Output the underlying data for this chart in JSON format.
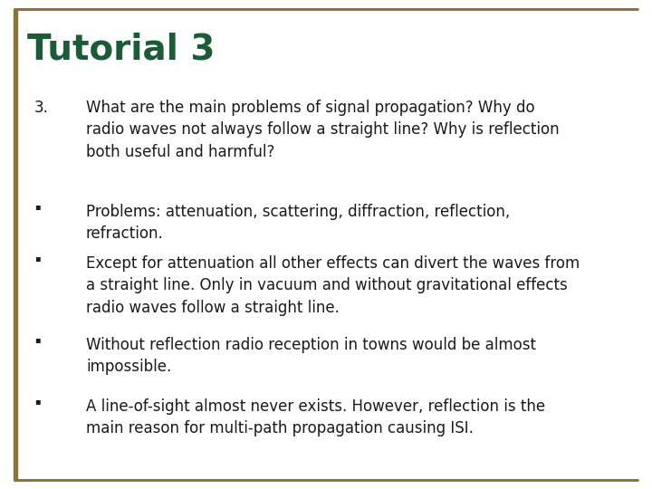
{
  "title": "Tutorial 3",
  "title_color": "#1a5c38",
  "title_fontsize": 28,
  "background_color": "#ffffff",
  "border_color": "#8B7536",
  "question_number": "3.",
  "question_text": "What are the main problems of signal propagation? Why do\nradio waves not always follow a straight line? Why is reflection\nboth useful and harmful?",
  "question_fontsize": 12,
  "text_color": "#1a1a1a",
  "bullet_fontsize": 12,
  "bullets": [
    "Problems: attenuation, scattering, diffraction, reflection,\nrefraction.",
    "Except for attenuation all other effects can divert the waves from\na straight line. Only in vacuum and without gravitational effects\nradio waves follow a straight line.",
    "Without reflection radio reception in towns would be almost\nimpossible.",
    "A line-of-sight almost never exists. However, reflection is the\nmain reason for multi-path propagation causing ISI."
  ]
}
